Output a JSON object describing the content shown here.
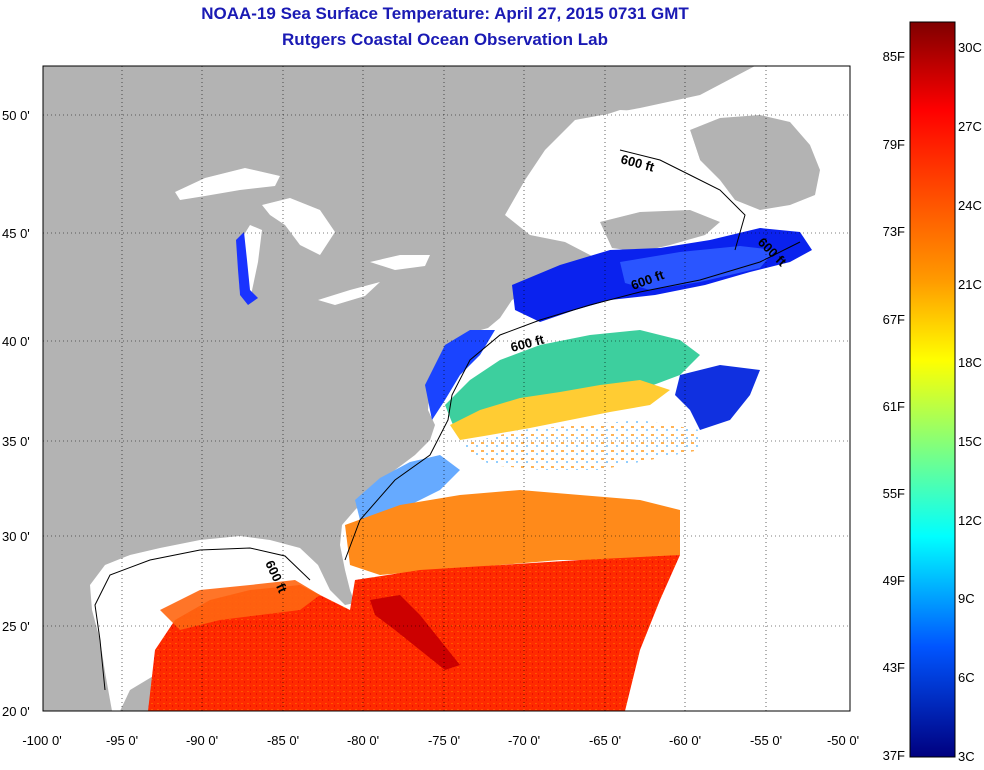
{
  "title": "NOAA-19 Sea Surface Temperature:  April 27, 2015 0731 GMT",
  "subtitle": "Rutgers Coastal Ocean Observation Lab",
  "axes": {
    "lat_labels": [
      "50 0'",
      "45 0'",
      "40 0'",
      "35 0'",
      "30 0'",
      "25 0'",
      "20 0'"
    ],
    "lon_labels": [
      "-100 0'",
      "-95 0'",
      "-90 0'",
      "-85 0'",
      "-80 0'",
      "-75 0'",
      "-70 0'",
      "-65 0'",
      "-60 0'",
      "-55 0'",
      "-50 0'"
    ]
  },
  "contour_label": "600 ft",
  "colorbar": {
    "fahrenheit_labels": [
      "85F",
      "79F",
      "73F",
      "67F",
      "61F",
      "55F",
      "49F",
      "43F",
      "37F"
    ],
    "celsius_labels": [
      "30C",
      "27C",
      "24C",
      "21C",
      "18C",
      "15C",
      "12C",
      "9C",
      "6C",
      "3C"
    ]
  },
  "colors": {
    "title": "#1a1ab4",
    "land": "#b3b3b3",
    "no_data": "#ffffff"
  }
}
